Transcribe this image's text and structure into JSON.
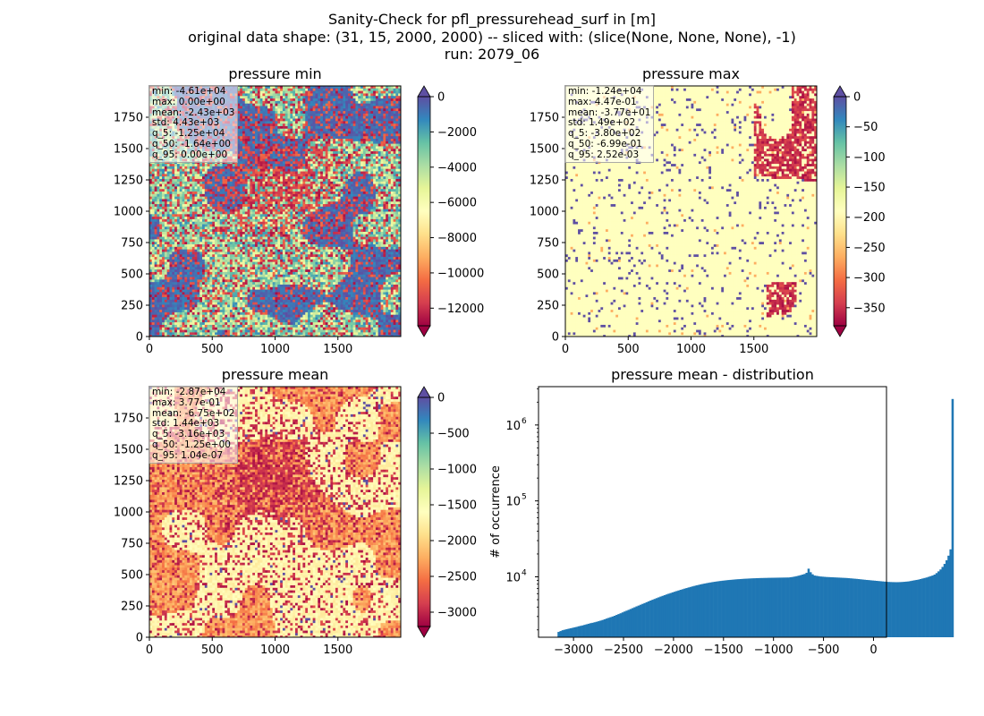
{
  "figure": {
    "title_lines": [
      "Sanity-Check for pfl_pressurehead_surf in [m]",
      "original data shape: (31, 15, 2000, 2000) -- sliced with: (slice(None, None, None), -1)",
      "run: 2079_06"
    ]
  },
  "panels": {
    "min": {
      "title": "pressure min",
      "stats": [
        "min: -4.61e+04",
        "max: 0.00e+00",
        "mean: -2.43e+03",
        "std: 4.43e+03",
        "q_5: -1.25e+04",
        "q_50: -1.64e+00",
        "q_95: 0.00e+00"
      ],
      "x_ticks": [
        "0",
        "500",
        "1000",
        "1500"
      ],
      "y_ticks": [
        "0",
        "250",
        "500",
        "750",
        "1000",
        "1250",
        "1500",
        "1750"
      ],
      "colorbar_ticks": [
        "0",
        "−2000",
        "−4000",
        "−6000",
        "−8000",
        "−10000",
        "−12000"
      ]
    },
    "max": {
      "title": "pressure max",
      "stats": [
        "min: -1.24e+04",
        "max: 4.47e-01",
        "mean: -3.77e+01",
        "std: 1.49e+02",
        "q_5: -3.80e+02",
        "q_50: -6.99e-01",
        "q_95: 2.52e-03"
      ],
      "x_ticks": [
        "0",
        "500",
        "1000",
        "1500"
      ],
      "y_ticks": [
        "0",
        "250",
        "500",
        "750",
        "1000",
        "1250",
        "1500",
        "1750"
      ],
      "colorbar_ticks": [
        "0",
        "−50",
        "−100",
        "−150",
        "−200",
        "−250",
        "−300",
        "−350"
      ]
    },
    "mean": {
      "title": "pressure mean",
      "stats": [
        "min: -2.87e+04",
        "max: 3.77e-01",
        "mean: -6.75e+02",
        "std: 1.44e+03",
        "q_5: -3.16e+03",
        "q_50: -1.25e+00",
        "q_95: 1.04e-07"
      ],
      "x_ticks": [
        "0",
        "500",
        "1000",
        "1500"
      ],
      "y_ticks": [
        "0",
        "250",
        "500",
        "750",
        "1000",
        "1250",
        "1500",
        "1750"
      ],
      "colorbar_ticks": [
        "0",
        "−500",
        "−1000",
        "−1500",
        "−2000",
        "−2500",
        "−3000"
      ]
    }
  },
  "chart_data": [
    {
      "type": "heatmap",
      "title": "pressure min",
      "xlim": [
        0,
        2000
      ],
      "ylim": [
        0,
        2000
      ],
      "x_ticks": [
        0,
        500,
        1000,
        1500
      ],
      "y_ticks": [
        0,
        250,
        500,
        750,
        1000,
        1250,
        1500,
        1750
      ],
      "colormap": "Spectral",
      "colorbar_range": [
        -13000,
        0
      ],
      "colorbar_ticks": [
        0,
        -2000,
        -4000,
        -6000,
        -8000,
        -10000,
        -12000
      ],
      "colorbar_extend": "both"
    },
    {
      "type": "heatmap",
      "title": "pressure max",
      "xlim": [
        0,
        2000
      ],
      "ylim": [
        0,
        2000
      ],
      "x_ticks": [
        0,
        500,
        1000,
        1500
      ],
      "y_ticks": [
        0,
        250,
        500,
        750,
        1000,
        1250,
        1500,
        1750
      ],
      "colormap": "Spectral",
      "colorbar_range": [
        -380,
        0
      ],
      "colorbar_ticks": [
        0,
        -50,
        -100,
        -150,
        -200,
        -250,
        -300,
        -350
      ],
      "colorbar_extend": "both"
    },
    {
      "type": "heatmap",
      "title": "pressure mean",
      "xlim": [
        0,
        2000
      ],
      "ylim": [
        0,
        2000
      ],
      "x_ticks": [
        0,
        500,
        1000,
        1500
      ],
      "y_ticks": [
        0,
        250,
        500,
        750,
        1000,
        1250,
        1500,
        1750
      ],
      "colormap": "Spectral",
      "colorbar_range": [
        -3200,
        0
      ],
      "colorbar_ticks": [
        0,
        -500,
        -1000,
        -1500,
        -2000,
        -2500,
        -3000
      ],
      "colorbar_extend": "both"
    },
    {
      "type": "bar",
      "title": "pressure mean - distribution",
      "ylabel": "# of occurrence",
      "xlabel": "",
      "yscale": "log",
      "xlim": [
        -3350,
        130
      ],
      "ylim": [
        1600,
        3200000
      ],
      "x_ticks": [
        -3000,
        -2500,
        -2000,
        -1500,
        -1000,
        -500,
        0
      ],
      "x_tick_labels": [
        "−3000",
        "−2500",
        "−2000",
        "−1500",
        "−1000",
        "−500",
        "0"
      ],
      "y_tick_labels": [
        "10",
        "10",
        "10"
      ],
      "y_tick_exponents": [
        "4",
        "5",
        "6"
      ],
      "y_ticks": [
        10000,
        100000,
        1000000
      ],
      "bar_color": "#1f77b4",
      "bin_width": 20,
      "bins_start": -3160,
      "counts": [
        1880,
        1930,
        1980,
        2010,
        2040,
        2070,
        2100,
        2130,
        2160,
        2190,
        2230,
        2260,
        2290,
        2330,
        2370,
        2410,
        2450,
        2480,
        2520,
        2560,
        2600,
        2650,
        2700,
        2760,
        2820,
        2880,
        2940,
        3000,
        3070,
        3150,
        3230,
        3310,
        3400,
        3490,
        3580,
        3670,
        3770,
        3870,
        3970,
        4080,
        4180,
        4290,
        4400,
        4510,
        4630,
        4750,
        4870,
        4990,
        5110,
        5240,
        5360,
        5490,
        5610,
        5740,
        5860,
        5990,
        6110,
        6240,
        6360,
        6490,
        6610,
        6740,
        6860,
        6990,
        7110,
        7240,
        7360,
        7480,
        7600,
        7720,
        7830,
        7940,
        8050,
        8150,
        8250,
        8340,
        8430,
        8520,
        8600,
        8680,
        8750,
        8820,
        8890,
        8950,
        9010,
        9070,
        9120,
        9170,
        9220,
        9270,
        9310,
        9350,
        9390,
        9430,
        9460,
        9490,
        9520,
        9550,
        9570,
        9600,
        9620,
        9640,
        9650,
        9670,
        9680,
        9700,
        9710,
        9720,
        9730,
        9740,
        9750,
        9760,
        9770,
        9780,
        9790,
        9800,
        9880,
        9960,
        10070,
        10200,
        10350,
        10520,
        10700,
        10900,
        11300,
        12800,
        11500,
        10800,
        10400,
        10300,
        10200,
        10100,
        10050,
        10000,
        9950,
        9920,
        9890,
        9860,
        9830,
        9800,
        9770,
        9740,
        9710,
        9680,
        9650,
        9600,
        9550,
        9500,
        9450,
        9400,
        9340,
        9280,
        9220,
        9160,
        9100,
        9060,
        9000,
        8950,
        8900,
        8850,
        8800,
        8750,
        8700,
        8650,
        8600,
        8560,
        8540,
        8520,
        8510,
        8500,
        8510,
        8530,
        8560,
        8600,
        8650,
        8700,
        8800,
        8900,
        9000,
        9100,
        9200,
        9350,
        9500,
        9650,
        9800,
        10000,
        10200,
        10400,
        10700,
        11200,
        11800,
        12500,
        13500,
        14800,
        16500,
        19000,
        23000,
        2200000
      ]
    }
  ]
}
